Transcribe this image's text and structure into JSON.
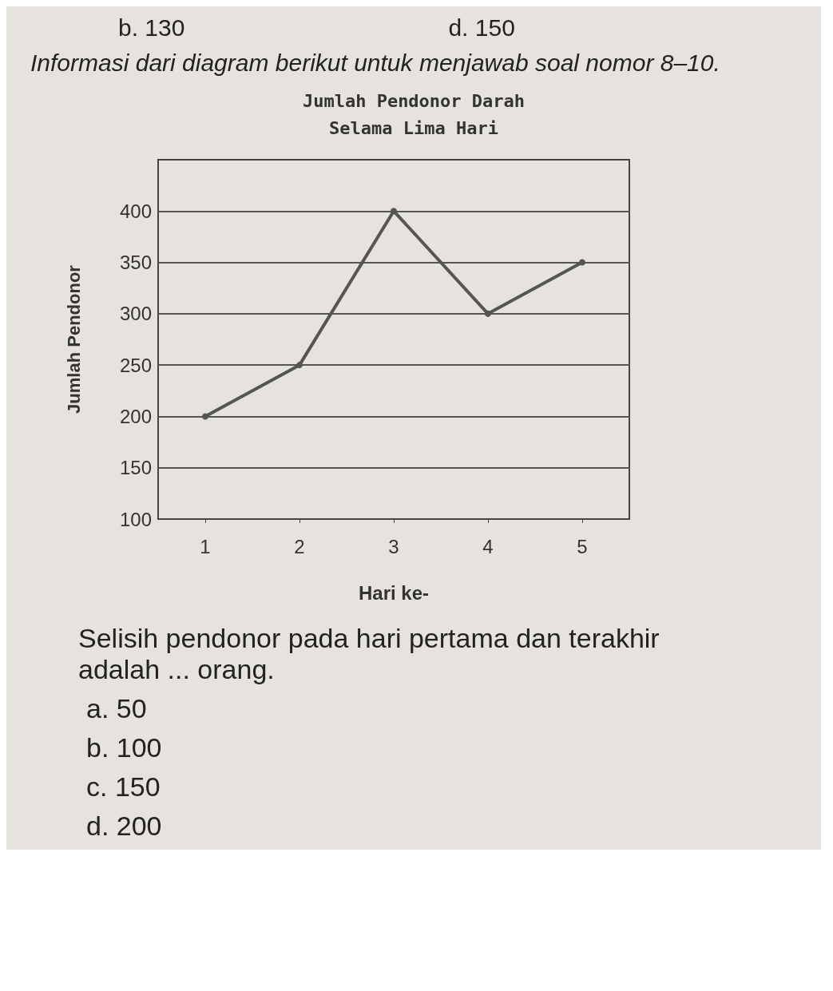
{
  "chart_data": {
    "type": "line",
    "title": "Jumlah Pendonor Darah",
    "subtitle": "Selama Lima Hari",
    "xlabel": "Hari ke-",
    "ylabel": "Jumlah Pendonor",
    "categories": [
      "1",
      "2",
      "3",
      "4",
      "5"
    ],
    "series": [
      {
        "color": "#555555",
        "values": [
          200,
          250,
          400,
          300,
          350
        ]
      }
    ],
    "ylim": [
      100,
      450
    ],
    "yticks": [
      100,
      150,
      200,
      250,
      300,
      350,
      400
    ],
    "grid": "y",
    "marker": "circle",
    "line_style": "solid",
    "annotations": [
      "b.  130",
      "d.  150",
      "Informasi dari diagram berikut untuk menjawab soal nomor 8–10.",
      "Selisih pendonor pada hari pertama dan terakhir adalah ... orang.",
      "a.  50",
      "b.  100",
      "c.  150",
      "d.  200"
    ]
  }
}
